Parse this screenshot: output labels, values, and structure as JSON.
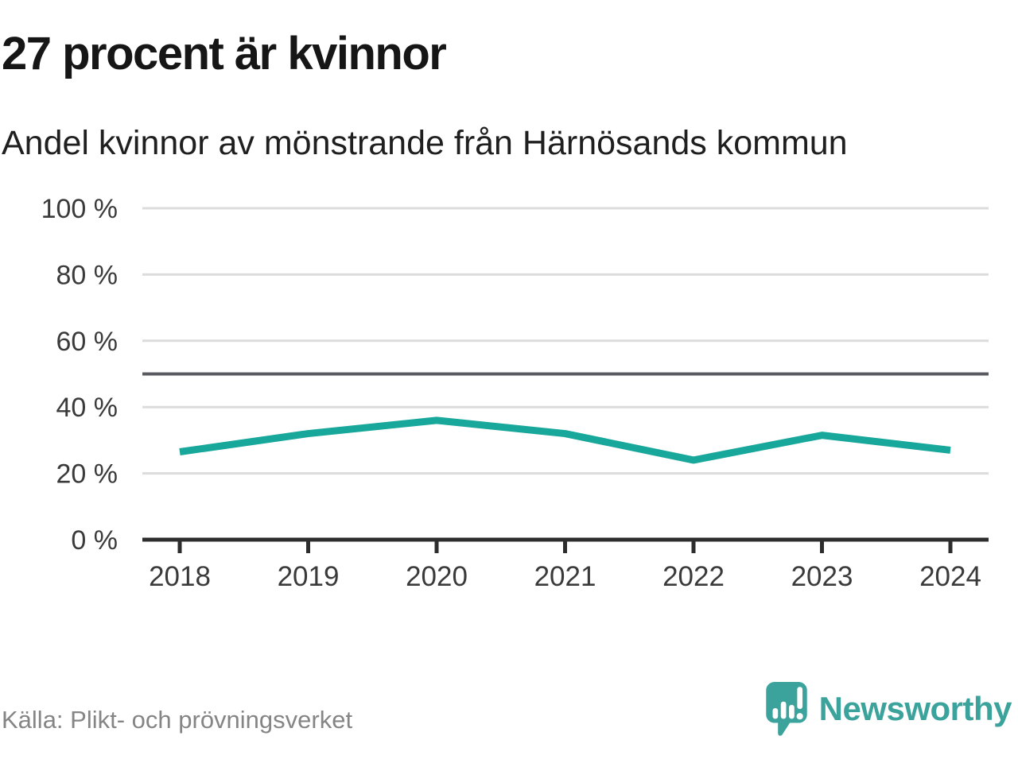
{
  "header": {
    "title": "27 procent är kvinnor",
    "subtitle": "Andel kvinnor av mönstrande från Härnösands kommun"
  },
  "chart_data": {
    "type": "line",
    "title": "27 procent är kvinnor",
    "subtitle": "Andel kvinnor av mönstrande från Härnösands kommun",
    "categories": [
      "2018",
      "2019",
      "2020",
      "2021",
      "2022",
      "2023",
      "2024"
    ],
    "series": [
      {
        "name": "Andel kvinnor av mönstrande",
        "values": [
          26.5,
          32,
          36,
          32,
          24,
          31.5,
          27
        ],
        "color": "#18a79b"
      }
    ],
    "xlabel": "",
    "ylabel": "",
    "ylim": [
      0,
      100
    ],
    "yticks": [
      0,
      20,
      40,
      60,
      80,
      100
    ],
    "ytick_suffix": " %",
    "reference_line": {
      "value": 50
    },
    "grid": true,
    "legend": false
  },
  "footer": {
    "source": "Källa: Plikt- och prövningsverket",
    "brand": "Newsworthy"
  },
  "colors": {
    "accent": "#18a79b",
    "brand": "#3ba39b",
    "grid": "#dcdcdc",
    "reference_line": "#5a5a62",
    "axis": "#2d2d2d",
    "text": "#161616",
    "muted": "#858585"
  },
  "icons": {
    "logo": "newsworthy-speech-bubble-bar-chart-icon"
  }
}
